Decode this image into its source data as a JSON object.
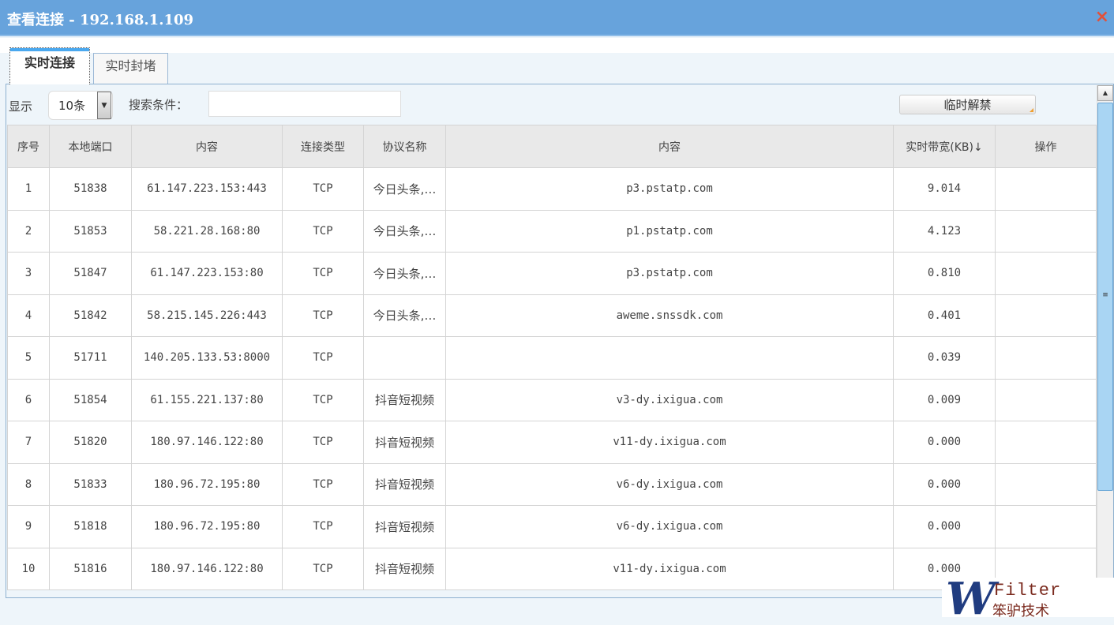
{
  "window": {
    "title": "查看连接 - 192.168.1.109",
    "close_icon": "×"
  },
  "tabs": [
    {
      "label": "实时连接",
      "active": true
    },
    {
      "label": "实时封堵",
      "active": false
    }
  ],
  "toolbar": {
    "show_label": "显示",
    "page_size": "10条",
    "search_label": "搜索条件：",
    "search_value": "",
    "search_placeholder": "",
    "unblock_button": "临时解禁"
  },
  "table": {
    "headers": [
      "序号",
      "本地端口",
      "内容",
      "连接类型",
      "协议名称",
      "内容",
      "实时带宽(KB)↓",
      "操作"
    ],
    "rows": [
      [
        "1",
        "51838",
        "61.147.223.153:443",
        "TCP",
        "今日头条,…",
        "p3.pstatp.com",
        "9.014",
        ""
      ],
      [
        "2",
        "51853",
        "58.221.28.168:80",
        "TCP",
        "今日头条,…",
        "p1.pstatp.com",
        "4.123",
        ""
      ],
      [
        "3",
        "51847",
        "61.147.223.153:80",
        "TCP",
        "今日头条,…",
        "p3.pstatp.com",
        "0.810",
        ""
      ],
      [
        "4",
        "51842",
        "58.215.145.226:443",
        "TCP",
        "今日头条,…",
        "aweme.snssdk.com",
        "0.401",
        ""
      ],
      [
        "5",
        "51711",
        "140.205.133.53:8000",
        "TCP",
        "",
        "",
        "0.039",
        ""
      ],
      [
        "6",
        "51854",
        "61.155.221.137:80",
        "TCP",
        "抖音短视频",
        "v3-dy.ixigua.com",
        "0.009",
        ""
      ],
      [
        "7",
        "51820",
        "180.97.146.122:80",
        "TCP",
        "抖音短视频",
        "v11-dy.ixigua.com",
        "0.000",
        ""
      ],
      [
        "8",
        "51833",
        "180.96.72.195:80",
        "TCP",
        "抖音短视频",
        "v6-dy.ixigua.com",
        "0.000",
        ""
      ],
      [
        "9",
        "51818",
        "180.96.72.195:80",
        "TCP",
        "抖音短视频",
        "v6-dy.ixigua.com",
        "0.000",
        ""
      ],
      [
        "10",
        "51816",
        "180.97.146.122:80",
        "TCP",
        "抖音短视频",
        "v11-dy.ixigua.com",
        "0.000",
        ""
      ]
    ]
  },
  "watermark": {
    "letter": "W",
    "brand": "Filter",
    "cn": "笨驴技术"
  }
}
